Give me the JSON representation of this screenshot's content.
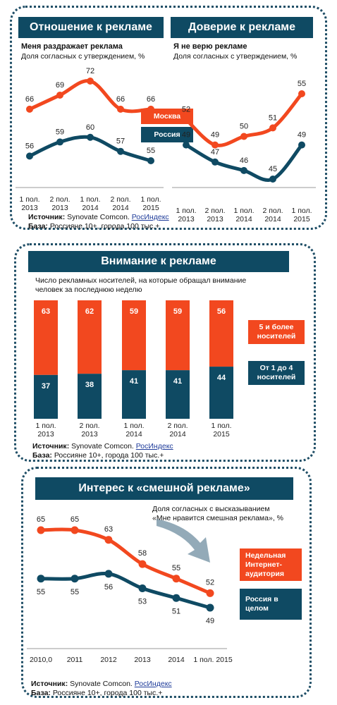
{
  "colors": {
    "orange": "#f2481f",
    "navy": "#0f4a63"
  },
  "panel1": {
    "title": "Отношение к рекламе",
    "subtitle": "Меня раздражает реклама",
    "note": "Доля согласных с утверждением, %",
    "source_label": "Источник:",
    "source_text": "Synovate Comcon.",
    "source_link": "РосИндекс",
    "base_label": "База:",
    "base_text": "Россияне 10+, города 100 тыс.+",
    "chart_data": {
      "type": "line",
      "categories": [
        "1 пол. 2013",
        "2 пол. 2013",
        "1 пол. 2014",
        "2 пол. 2014",
        "1 пол. 2015"
      ],
      "series": [
        {
          "name": "Москва",
          "values": [
            66,
            69,
            72,
            66,
            66
          ]
        },
        {
          "name": "Россия",
          "values": [
            56,
            59,
            60,
            57,
            55
          ]
        }
      ]
    }
  },
  "panel2": {
    "title": "Доверие к рекламе",
    "subtitle": "Я не верю рекламе",
    "note": "Доля согласных с утверждением, %",
    "chart_data": {
      "type": "line",
      "categories": [
        "1 пол. 2013",
        "2 пол. 2013",
        "1 пол. 2014",
        "2 пол. 2014",
        "1 пол. 2015"
      ],
      "series": [
        {
          "name": "Москва",
          "values": [
            52,
            49,
            50,
            51,
            55
          ]
        },
        {
          "name": "Россия",
          "values": [
            49,
            47,
            46,
            45,
            49
          ]
        }
      ]
    }
  },
  "legend_top": {
    "moscow": "Москва",
    "russia": "Россия"
  },
  "panel3": {
    "title": "Внимание к рекламе",
    "note_line1": "Число рекламных носителей, на которые обращал внимание",
    "note_line2": "человек за последнюю неделю",
    "legend_top": "5 и более носителей",
    "legend_bottom": "От 1 до 4 носителей",
    "source_label": "Источник:",
    "source_text": "Synovate Comcon.",
    "source_link": "РосИндекс",
    "base_label": "База:",
    "base_text": "Россияне 10+, города 100 тыс.+",
    "chart_data": {
      "type": "bar",
      "stacked": true,
      "categories": [
        "1 пол. 2013",
        "2 пол. 2013",
        "1 пол. 2014",
        "2 пол. 2014",
        "1 пол. 2015"
      ],
      "series": [
        {
          "name": "От 1 до 4 носителей",
          "values": [
            37,
            38,
            41,
            41,
            44
          ]
        },
        {
          "name": "5 и более носителей",
          "values": [
            63,
            62,
            59,
            59,
            56
          ]
        }
      ]
    }
  },
  "panel4": {
    "title": "Интерес к «смешной рекламе»",
    "note_line1": "Доля согласных с высказыванием",
    "note_line2": "«Мне нравится смешная реклама», %",
    "legend_orange": "Недельная Интернет-аудитория",
    "legend_navy": "Россия в целом",
    "source_label": "Источник:",
    "source_text": "Synovate Comcon.",
    "source_link": "РосИндекс",
    "base_label": "База:",
    "base_text": "Россияне 10+, города 100 тыс.+",
    "chart_data": {
      "type": "line",
      "categories": [
        "2010,0",
        "2011",
        "2012",
        "2013",
        "2014",
        "1 пол. 2015"
      ],
      "series": [
        {
          "name": "Недельная Интернет-аудитория",
          "values": [
            65,
            65,
            63,
            58,
            55,
            52
          ]
        },
        {
          "name": "Россия в целом",
          "values": [
            55,
            55,
            56,
            53,
            51,
            49
          ]
        }
      ]
    }
  }
}
